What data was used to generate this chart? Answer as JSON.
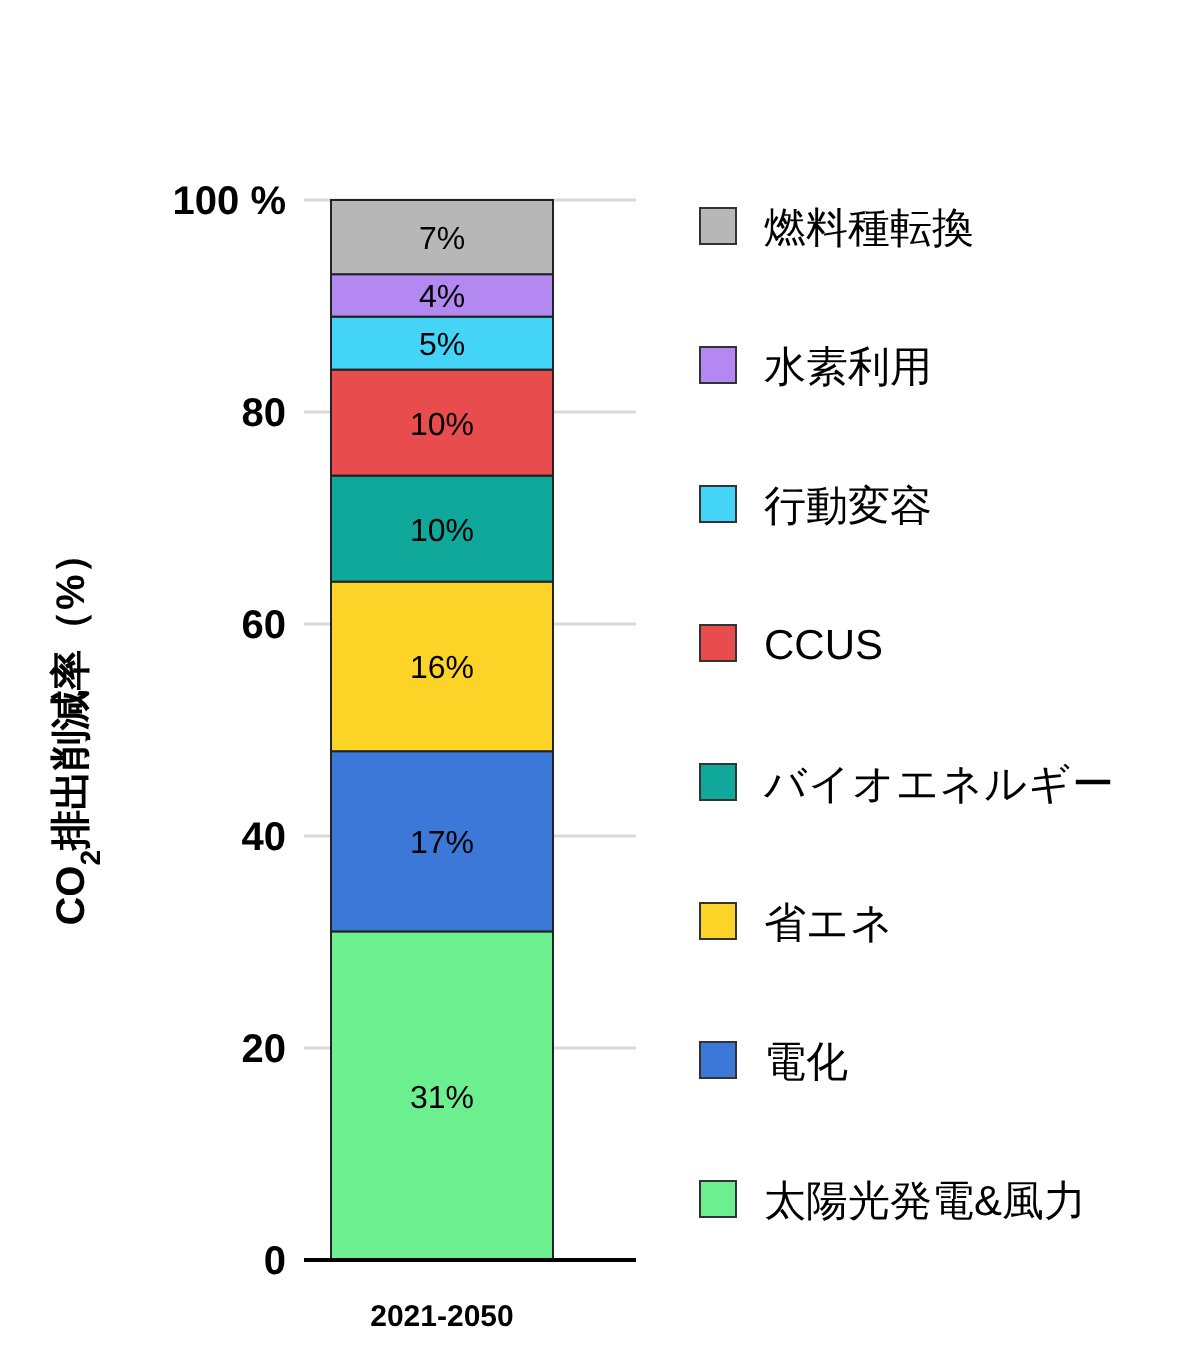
{
  "chart_data": {
    "type": "bar",
    "stacked": true,
    "categories": [
      "2021-2050"
    ],
    "ylabel": "CO$_{2}$排出削減率（%）",
    "ylim": [
      0,
      100
    ],
    "yticks": [
      0,
      20,
      40,
      60,
      80,
      {
        "value": 100,
        "label": "100 %"
      }
    ],
    "grid": "y",
    "legend": "right",
    "series": [
      {
        "name": "太陽光発電&風力",
        "color": "#6cf08f",
        "values": [
          31
        ],
        "value_labels": [
          "31%"
        ]
      },
      {
        "name": "電化",
        "color": "#3c78d8",
        "values": [
          17
        ],
        "value_labels": [
          "17%"
        ]
      },
      {
        "name": "省エネ",
        "color": "#fcd327",
        "values": [
          16
        ],
        "value_labels": [
          "16%"
        ]
      },
      {
        "name": "バイオエネルギー",
        "color": "#0fa89a",
        "values": [
          10
        ],
        "value_labels": [
          "10%"
        ]
      },
      {
        "name": "CCUS",
        "color": "#e84c4c",
        "values": [
          10
        ],
        "value_labels": [
          "10%"
        ]
      },
      {
        "name": "行動変容",
        "color": "#44d4f8",
        "values": [
          5
        ],
        "value_labels": [
          "5%"
        ]
      },
      {
        "name": "水素利用",
        "color": "#b388f0",
        "values": [
          4
        ],
        "value_labels": [
          "4%"
        ]
      },
      {
        "name": "燃料種転換",
        "color": "#b7b7b7",
        "values": [
          7
        ],
        "value_labels": [
          "7%"
        ]
      }
    ]
  }
}
